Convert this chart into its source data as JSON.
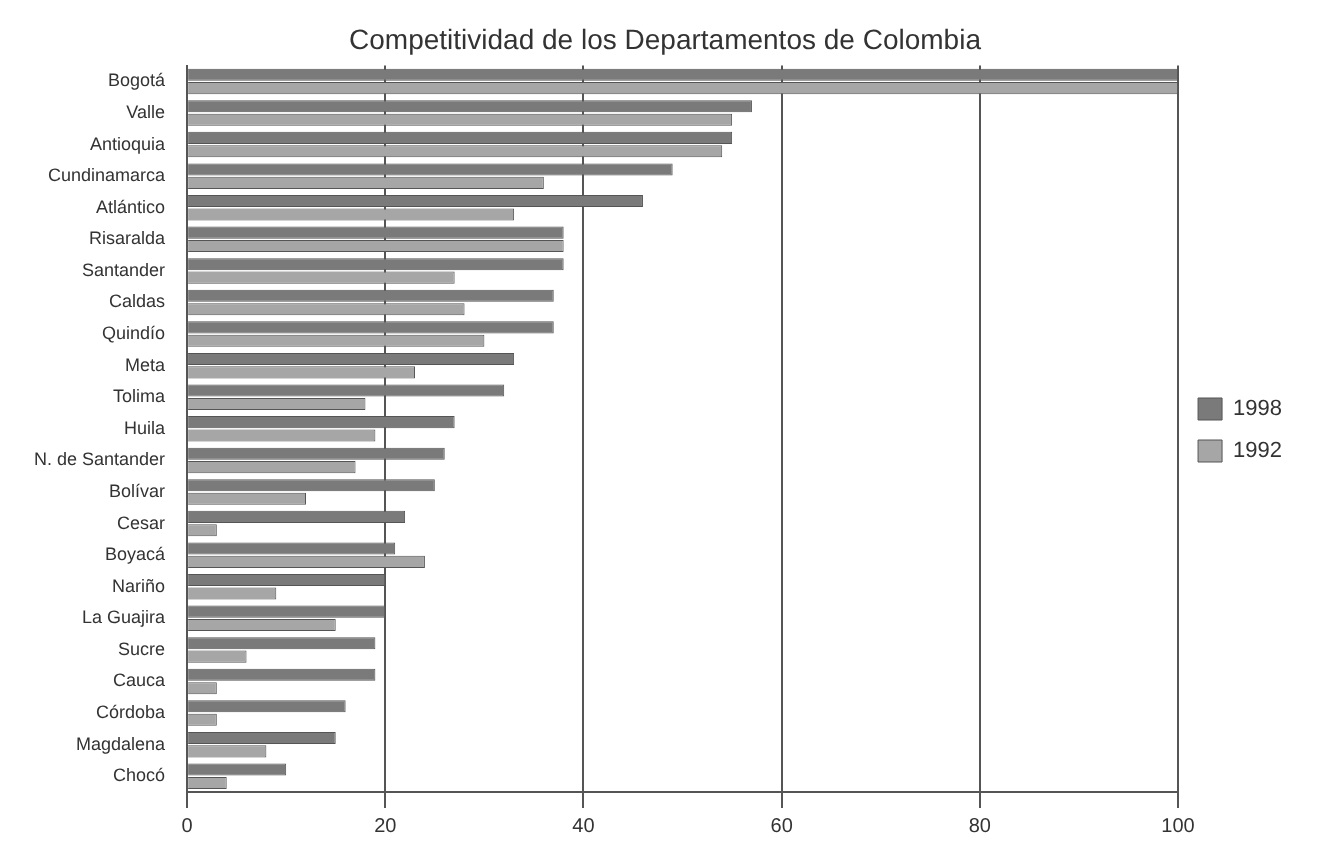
{
  "chart_data": {
    "type": "bar",
    "orientation": "horizontal",
    "title": "Competitividad de los Departamentos de Colombia",
    "categories": [
      "Bogotá",
      "Valle",
      "Antioquia",
      "Cundinamarca",
      "Atlántico",
      "Risaralda",
      "Santander",
      "Caldas",
      "Quindío",
      "Meta",
      "Tolima",
      "Huila",
      "N. de Santander",
      "Bolívar",
      "Cesar",
      "Boyacá",
      "Nariño",
      "La Guajira",
      "Sucre",
      "Cauca",
      "Córdoba",
      "Magdalena",
      "Chocó"
    ],
    "series": [
      {
        "name": "1998",
        "color": "#7a7a7a",
        "values": [
          100,
          57,
          55,
          49,
          46,
          38,
          38,
          37,
          37,
          33,
          32,
          27,
          26,
          25,
          22,
          21,
          20,
          20,
          19,
          19,
          16,
          15,
          10
        ]
      },
      {
        "name": "1992",
        "color": "#a6a6a6",
        "values": [
          100,
          55,
          54,
          36,
          33,
          38,
          27,
          28,
          30,
          23,
          18,
          19,
          17,
          12,
          3,
          24,
          9,
          15,
          6,
          3,
          3,
          8,
          4
        ]
      }
    ],
    "xlim": [
      0,
      100
    ],
    "xticks": [
      0,
      20,
      40,
      60,
      80,
      100
    ],
    "grid": "x",
    "legend": "right"
  }
}
